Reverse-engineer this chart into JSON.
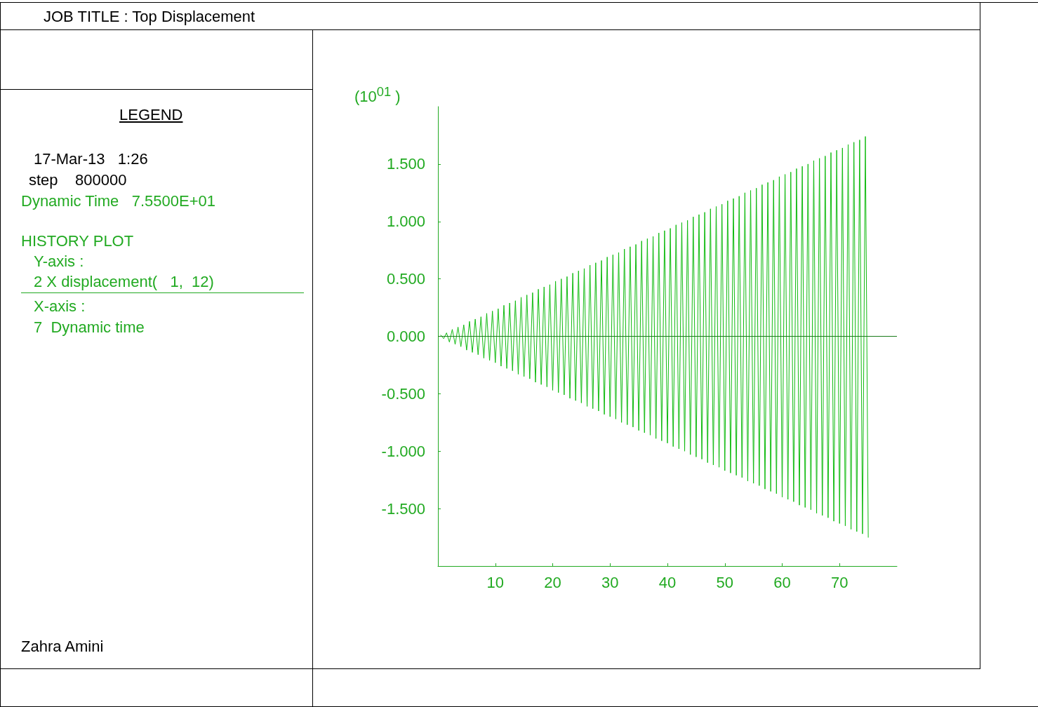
{
  "chart_data": {
    "type": "line",
    "title": "JOB TITLE : Top Displacement",
    "ylabel": "(10$^{01}$ )",
    "annotations": [
      "LEGEND",
      "17-Mar-13   1:26",
      "step    800000",
      "Dynamic Time   7.5500E+01",
      "HISTORY PLOT",
      "Y-axis :",
      "2 X displacement(   1,  12)",
      "X-axis :",
      "7  Dynamic time",
      "Zahra Amini"
    ],
    "x": [
      0.5,
      1,
      1.5,
      2,
      2.5,
      3,
      3.5,
      4,
      4.5,
      5,
      5.5,
      6,
      6.5,
      7,
      7.5,
      8,
      8.5,
      9,
      9.5,
      10,
      10.5,
      11,
      11.5,
      12,
      12.5,
      13,
      13.5,
      14,
      14.5,
      15,
      15.5,
      16,
      16.5,
      17,
      17.5,
      18,
      18.5,
      19,
      19.5,
      20,
      20.5,
      21,
      21.5,
      22,
      22.5,
      23,
      23.5,
      24,
      24.5,
      25,
      25.5,
      26,
      26.5,
      27,
      27.5,
      28,
      28.5,
      29,
      29.5,
      30,
      30.5,
      31,
      31.5,
      32,
      32.5,
      33,
      33.5,
      34,
      34.5,
      35,
      35.5,
      36,
      36.5,
      37,
      37.5,
      38,
      38.5,
      39,
      39.5,
      40,
      40.5,
      41,
      41.5,
      42,
      42.5,
      43,
      43.5,
      44,
      44.5,
      45,
      45.5,
      46,
      46.5,
      47,
      47.5,
      48,
      48.5,
      49,
      49.5,
      50,
      50.5,
      51,
      51.5,
      52,
      52.5,
      53,
      53.5,
      54,
      54.5,
      55,
      55.5,
      56,
      56.5,
      57,
      57.5,
      58,
      58.5,
      59,
      59.5,
      60,
      60.5,
      61,
      61.5,
      62,
      62.5,
      63,
      63.5,
      64,
      64.5,
      65,
      65.5,
      66,
      66.5,
      67,
      67.5,
      68,
      68.5,
      69,
      69.5,
      70,
      70.5,
      71,
      71.5,
      72,
      72.5,
      73,
      73.5,
      74,
      74.5,
      75
    ],
    "series": [
      {
        "color": "#11bb11",
        "values": [
          0.01,
          -0.02,
          0.03,
          -0.05,
          0.06,
          -0.07,
          0.08,
          -0.09,
          0.1,
          -0.12,
          0.13,
          -0.14,
          0.15,
          -0.16,
          0.17,
          -0.19,
          0.2,
          -0.21,
          0.22,
          -0.23,
          0.24,
          -0.26,
          0.27,
          -0.28,
          0.29,
          -0.3,
          0.31,
          -0.33,
          0.34,
          -0.35,
          0.36,
          -0.37,
          0.38,
          -0.4,
          0.41,
          -0.42,
          0.43,
          -0.44,
          0.45,
          -0.47,
          0.48,
          -0.49,
          0.5,
          -0.51,
          0.52,
          -0.54,
          0.55,
          -0.56,
          0.57,
          -0.58,
          0.59,
          -0.61,
          0.62,
          -0.63,
          0.64,
          -0.65,
          0.66,
          -0.68,
          0.69,
          -0.7,
          0.71,
          -0.72,
          0.73,
          -0.75,
          0.76,
          -0.77,
          0.78,
          -0.79,
          0.8,
          -0.82,
          0.83,
          -0.84,
          0.85,
          -0.86,
          0.87,
          -0.89,
          0.9,
          -0.91,
          0.92,
          -0.93,
          0.94,
          -0.96,
          0.97,
          -0.98,
          0.99,
          -1.0,
          1.01,
          -1.03,
          1.04,
          -1.05,
          1.06,
          -1.07,
          1.08,
          -1.1,
          1.11,
          -1.12,
          1.13,
          -1.14,
          1.15,
          -1.17,
          1.18,
          -1.19,
          1.2,
          -1.21,
          1.22,
          -1.23,
          1.25,
          -1.26,
          1.27,
          -1.28,
          1.29,
          -1.3,
          1.32,
          -1.33,
          1.34,
          -1.35,
          1.36,
          -1.37,
          1.39,
          -1.4,
          1.41,
          -1.42,
          1.43,
          -1.44,
          1.46,
          -1.47,
          1.48,
          -1.49,
          1.5,
          -1.51,
          1.53,
          -1.54,
          1.55,
          -1.56,
          1.57,
          -1.58,
          1.6,
          -1.61,
          1.62,
          -1.63,
          1.64,
          -1.65,
          1.67,
          -1.68,
          1.69,
          -1.7,
          1.71,
          -1.72,
          1.74,
          -1.75
        ]
      }
    ],
    "xlim": [
      0,
      80
    ],
    "xticks": [
      10,
      20,
      30,
      40,
      50,
      60,
      70
    ],
    "ylim": [
      -2,
      2
    ],
    "yticks": [
      {
        "value": -1.5,
        "label": "-1.500"
      },
      {
        "value": -1,
        "label": "-1.000"
      },
      {
        "value": -0.5,
        "label": "-0.500"
      },
      {
        "value": 0,
        "label": "0.000"
      },
      {
        "value": 0.5,
        "label": "0.500"
      },
      {
        "value": 1,
        "label": "1.000"
      },
      {
        "value": 1.5,
        "label": "1.500"
      }
    ],
    "ref_lines": [
      {
        "axis": "y",
        "value": 0,
        "color": "#1a7a1a"
      }
    ],
    "grid": false,
    "marker": "none",
    "line_style": "solid"
  }
}
